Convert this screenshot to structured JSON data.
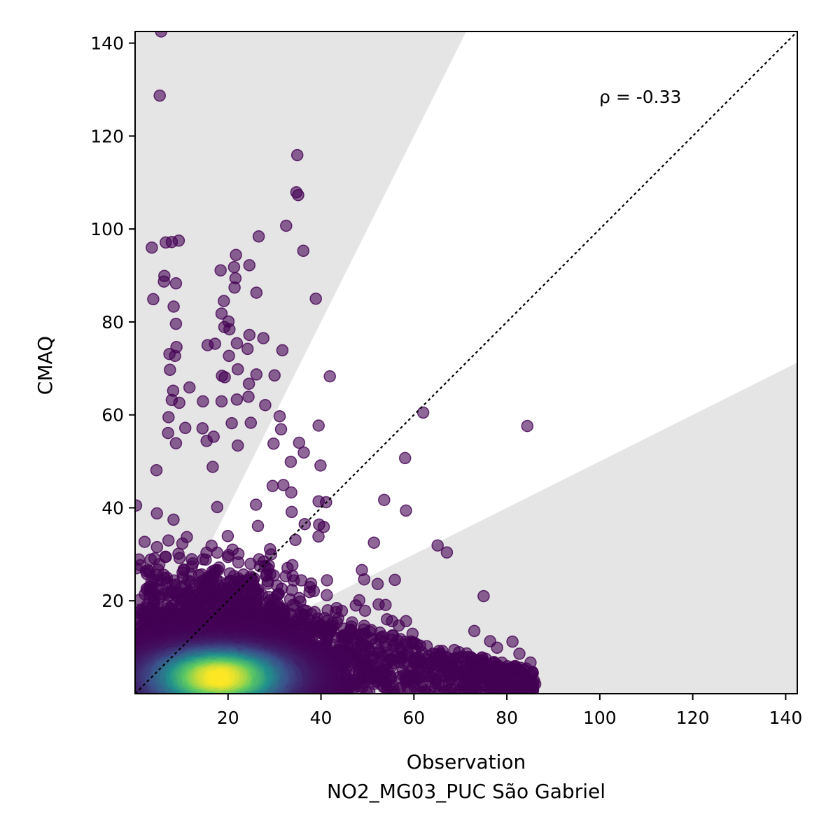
{
  "chart_data": {
    "type": "scatter",
    "title": "",
    "xlabel": "Observation",
    "xlabel_sub": "NO2_MG03_PUC São Gabriel",
    "ylabel": "CMAQ",
    "xlim": [
      0,
      142.5
    ],
    "ylim": [
      0,
      142.5
    ],
    "xticks": [
      20,
      40,
      60,
      80,
      100,
      120,
      140
    ],
    "yticks": [
      20,
      40,
      60,
      80,
      100,
      120,
      140
    ],
    "grid": false,
    "legend": "none",
    "annotation": "ρ = -0.33",
    "reference_line": "1:1 dotted diagonal",
    "shaded_regions": "outside factor-of-2 band (y > 2x and y < x/2)",
    "colormap": "viridis (point density)",
    "colors": {
      "low_density": "#440154",
      "mid_density": "#21918c",
      "high_density": "#fde725",
      "shade": "#e5e5e5"
    },
    "outlier_points": [
      [
        5.6,
        142.5
      ],
      [
        5.3,
        128.7
      ],
      [
        34.9,
        115.9
      ],
      [
        34.7,
        107.9
      ],
      [
        35.1,
        107.3
      ],
      [
        32.5,
        100.7
      ],
      [
        26.6,
        98.4
      ],
      [
        3.6,
        96
      ],
      [
        9.4,
        97.5
      ],
      [
        6.6,
        97.1
      ],
      [
        7.9,
        97.2
      ],
      [
        36.2,
        95.3
      ],
      [
        21.7,
        94.4
      ],
      [
        24.6,
        92.2
      ],
      [
        21.3,
        91.8
      ],
      [
        18.4,
        91.1
      ],
      [
        21.6,
        89.4
      ],
      [
        6.3,
        89.9
      ],
      [
        6.2,
        88.7
      ],
      [
        8.8,
        88.3
      ],
      [
        21.4,
        87.4
      ],
      [
        26.1,
        86.3
      ],
      [
        3.9,
        84.9
      ],
      [
        19.1,
        84.5
      ],
      [
        38.9,
        85
      ],
      [
        8.3,
        83.3
      ],
      [
        18.6,
        81.8
      ],
      [
        20.1,
        80.1
      ],
      [
        8.8,
        79.6
      ],
      [
        19.2,
        78.9
      ],
      [
        20.3,
        78.4
      ],
      [
        24.6,
        77.2
      ],
      [
        27.6,
        76.5
      ],
      [
        17.2,
        75.3
      ],
      [
        21.9,
        75.4
      ],
      [
        15.6,
        75
      ],
      [
        8.9,
        74.6
      ],
      [
        24.2,
        74.2
      ],
      [
        31.7,
        73.9
      ],
      [
        7.4,
        73.1
      ],
      [
        8.6,
        72.7
      ],
      [
        20.2,
        72.7
      ],
      [
        7.5,
        69.7
      ],
      [
        18.7,
        68.4
      ],
      [
        22.1,
        69.8
      ],
      [
        26.1,
        68.7
      ],
      [
        30,
        68.5
      ],
      [
        19.3,
        68.1
      ],
      [
        41.9,
        68.3
      ],
      [
        24.5,
        66.7
      ],
      [
        11.7,
        65.9
      ],
      [
        8.2,
        65.2
      ],
      [
        24.4,
        63.9
      ],
      [
        7.9,
        63.2
      ],
      [
        9.5,
        62.6
      ],
      [
        21.9,
        63.3
      ],
      [
        18.6,
        62.9
      ],
      [
        14.6,
        62.9
      ],
      [
        28,
        62.1
      ],
      [
        62,
        60.5
      ],
      [
        31.1,
        59.7
      ],
      [
        7.2,
        59.5
      ],
      [
        24.9,
        58.3
      ],
      [
        20.8,
        58.2
      ],
      [
        39.5,
        57.7
      ],
      [
        10.8,
        57.2
      ],
      [
        14.5,
        57.1
      ],
      [
        84.4,
        57.6
      ],
      [
        31.4,
        56.9
      ],
      [
        7.1,
        56.1
      ],
      [
        16.9,
        55.3
      ],
      [
        15.4,
        54.4
      ],
      [
        35.3,
        54
      ],
      [
        22.1,
        53.4
      ],
      [
        29.8,
        53.8
      ],
      [
        8.8,
        53.9
      ],
      [
        36.3,
        51.9
      ],
      [
        58.1,
        50.7
      ],
      [
        33.5,
        49.9
      ],
      [
        39.9,
        49.1
      ],
      [
        16.7,
        48.8
      ],
      [
        4.6,
        48.1
      ],
      [
        31.9,
        44.9
      ],
      [
        29.6,
        44.7
      ],
      [
        33.6,
        43.3
      ],
      [
        53.6,
        41.7
      ],
      [
        39.5,
        41.4
      ],
      [
        41.1,
        41.2
      ],
      [
        58.3,
        39.4
      ],
      [
        33.7,
        39.1
      ],
      [
        4.7,
        38.8
      ],
      [
        36.5,
        36.5
      ],
      [
        39.6,
        36.4
      ],
      [
        40.6,
        35.9
      ],
      [
        34.5,
        33.1
      ],
      [
        51.4,
        32.5
      ],
      [
        65.1,
        31.9
      ],
      [
        67.1,
        30.4
      ],
      [
        48.8,
        26.6
      ],
      [
        49.3,
        24.6
      ],
      [
        52.2,
        23.6
      ],
      [
        55.9,
        24.5
      ],
      [
        41.3,
        24.4
      ],
      [
        75,
        21
      ],
      [
        47.5,
        19
      ],
      [
        52.4,
        19.2
      ],
      [
        53.9,
        19.1
      ],
      [
        2.1,
        21.4
      ],
      [
        0.6,
        17.4
      ],
      [
        44.5,
        17.8
      ],
      [
        54.2,
        16
      ],
      [
        55.3,
        15.6
      ],
      [
        58.3,
        15.6
      ],
      [
        49.3,
        14.6
      ],
      [
        73,
        13.5
      ],
      [
        76.4,
        11.3
      ],
      [
        81.2,
        11.2
      ],
      [
        59.7,
        12.9
      ],
      [
        68.7,
        9.4
      ],
      [
        77.9,
        9.9
      ],
      [
        82.7,
        8.6
      ],
      [
        85.1,
        6.7
      ],
      [
        74.4,
        6.6
      ],
      [
        80.1,
        5.9
      ],
      [
        83.2,
        4.6
      ],
      [
        86.1,
        2.1
      ],
      [
        71.6,
        3.6
      ],
      [
        64.6,
        6.8
      ],
      [
        66.8,
        6.2
      ],
      [
        78.6,
        3.3
      ],
      [
        84.1,
        1.8
      ]
    ]
  }
}
